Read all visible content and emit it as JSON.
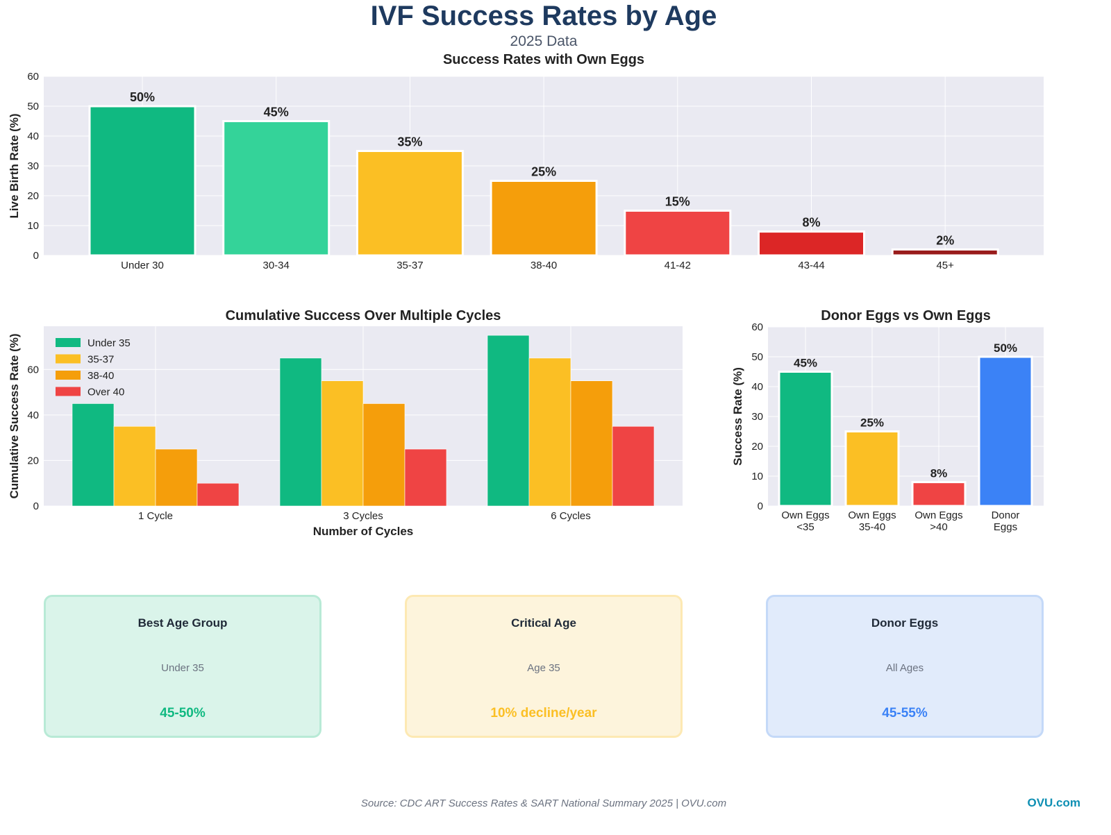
{
  "header": {
    "title": "IVF Success Rates by Age",
    "subtitle": "2025 Data"
  },
  "chart_data": [
    {
      "type": "bar",
      "title": "Success Rates with Own Eggs",
      "xlabel": "",
      "ylabel": "Live Birth Rate (%)",
      "ylim": [
        0,
        60
      ],
      "yticks": [
        0,
        10,
        20,
        30,
        40,
        50,
        60
      ],
      "grid": true,
      "categories": [
        "Under 30",
        "30-34",
        "35-37",
        "38-40",
        "41-42",
        "43-44",
        "45+"
      ],
      "values": [
        50,
        45,
        35,
        25,
        15,
        8,
        2
      ],
      "data_labels": [
        "50%",
        "45%",
        "35%",
        "25%",
        "15%",
        "8%",
        "2%"
      ],
      "colors": [
        "#10b981",
        "#34d399",
        "#fbbf24",
        "#f59e0b",
        "#ef4444",
        "#dc2626",
        "#991b1b"
      ]
    },
    {
      "type": "bar",
      "title": "Cumulative Success Over Multiple Cycles",
      "xlabel": "Number of Cycles",
      "ylabel": "Cumulative Success Rate (%)",
      "ylim": [
        0,
        79
      ],
      "yticks": [
        0,
        20,
        40,
        60
      ],
      "grid": true,
      "legend": "top-left",
      "categories": [
        "1 Cycle",
        "3 Cycles",
        "6 Cycles"
      ],
      "series": [
        {
          "name": "Under 35",
          "values": [
            45,
            65,
            75
          ],
          "color": "#10b981"
        },
        {
          "name": "35-37",
          "values": [
            35,
            55,
            65
          ],
          "color": "#fbbf24"
        },
        {
          "name": "38-40",
          "values": [
            25,
            45,
            55
          ],
          "color": "#f59e0b"
        },
        {
          "name": "Over 40",
          "values": [
            10,
            25,
            35
          ],
          "color": "#ef4444"
        }
      ]
    },
    {
      "type": "bar",
      "title": "Donor Eggs vs Own Eggs",
      "xlabel": "",
      "ylabel": "Success Rate (%)",
      "ylim": [
        0,
        60
      ],
      "yticks": [
        0,
        10,
        20,
        30,
        40,
        50,
        60
      ],
      "grid": true,
      "categories": [
        [
          "Own Eggs",
          "<35"
        ],
        [
          "Own Eggs",
          "35-40"
        ],
        [
          "Own Eggs",
          ">40"
        ],
        [
          "Donor",
          "Eggs"
        ]
      ],
      "values": [
        45,
        25,
        8,
        50
      ],
      "data_labels": [
        "45%",
        "25%",
        "8%",
        "50%"
      ],
      "colors": [
        "#10b981",
        "#fbbf24",
        "#ef4444",
        "#3b82f6"
      ]
    }
  ],
  "cards": [
    {
      "title": "Best Age Group",
      "subtitle": "Under 35",
      "value": "45-50%",
      "color": "#10b981",
      "bg": "#daf4ea",
      "border": "#b8ead6"
    },
    {
      "title": "Critical Age",
      "subtitle": "Age 35",
      "value": "10% decline/year",
      "color": "#fbbf24",
      "bg": "#fdf4dc",
      "border": "#fde9b3"
    },
    {
      "title": "Donor Eggs",
      "subtitle": "All Ages",
      "value": "45-55%",
      "color": "#3b82f6",
      "bg": "#e1ebfb",
      "border": "#c4d9f8"
    }
  ],
  "footer": {
    "source": "Source: CDC ART Success Rates & SART National Summary 2025 | OVU.com",
    "brand": "OVU.com"
  }
}
